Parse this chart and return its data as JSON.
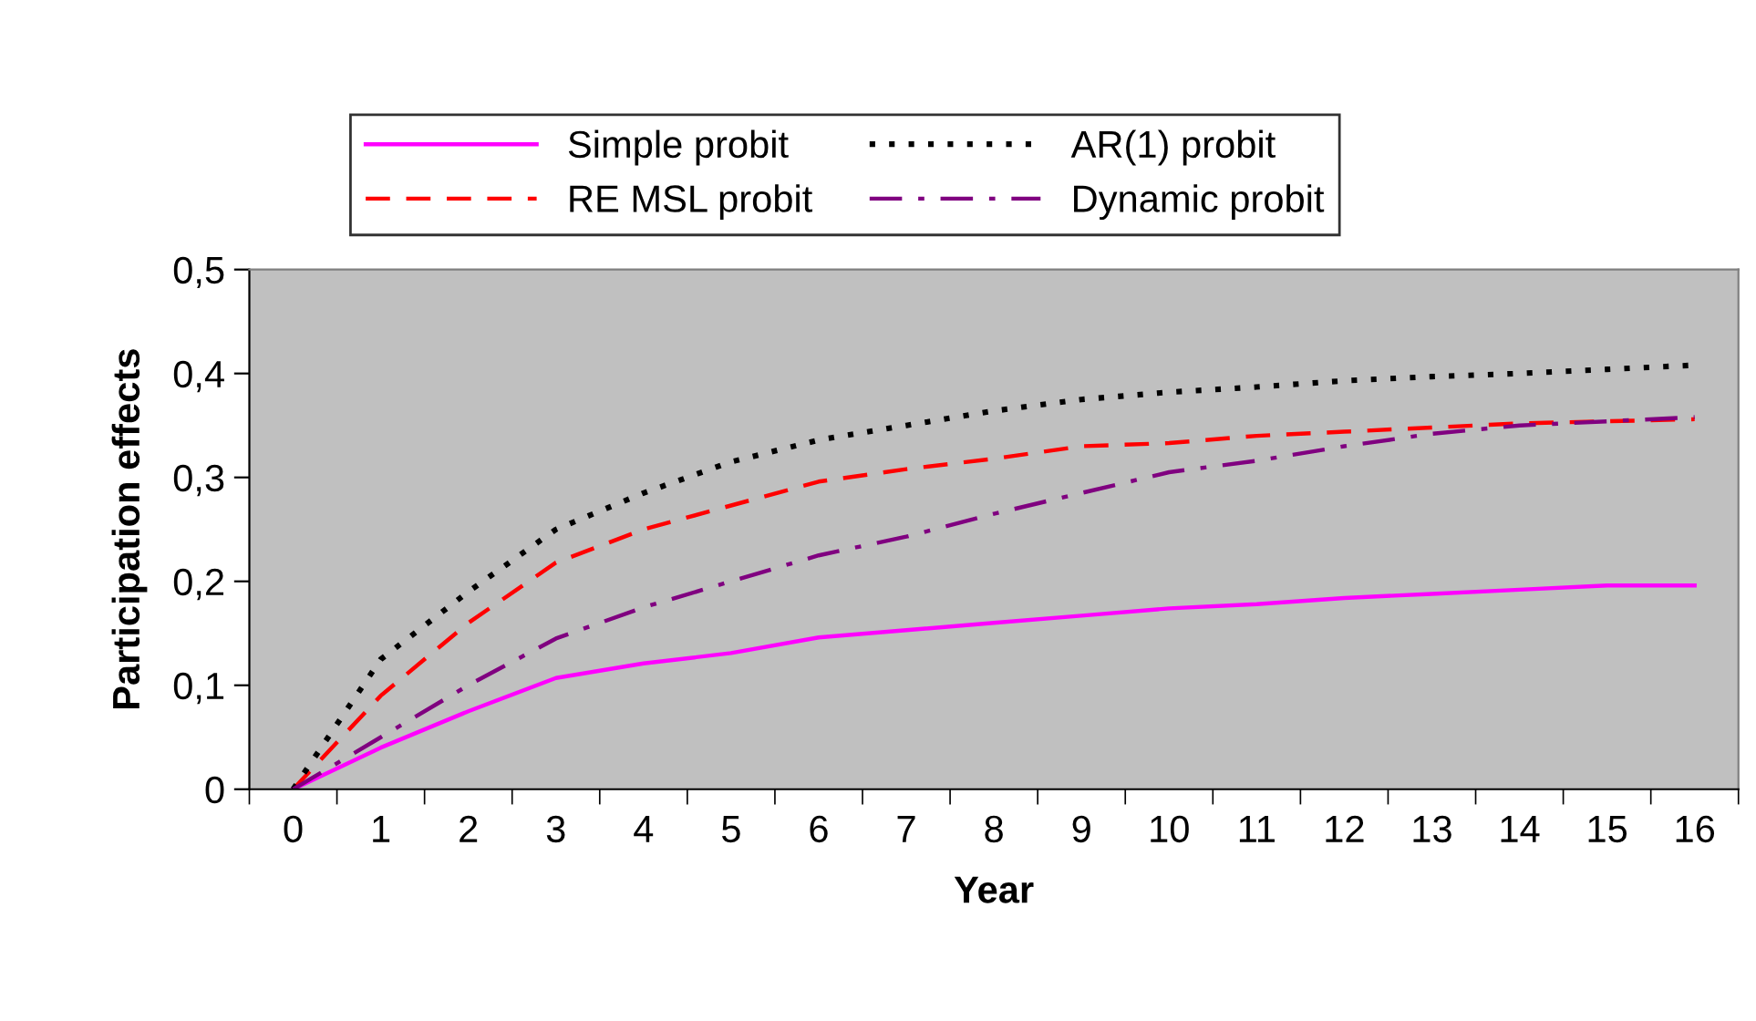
{
  "chart_data": {
    "type": "line",
    "xlabel": "Year",
    "ylabel": "Participation effects",
    "categories": [
      "0",
      "1",
      "2",
      "3",
      "4",
      "5",
      "6",
      "7",
      "8",
      "9",
      "10",
      "11",
      "12",
      "13",
      "14",
      "15",
      "16"
    ],
    "series": [
      {
        "name": "Simple probit",
        "color": "#ff00ff",
        "line_style": "solid",
        "values": [
          0,
          0.04,
          0.075,
          0.107,
          0.121,
          0.131,
          0.146,
          0.153,
          0.16,
          0.167,
          0.174,
          0.178,
          0.184,
          0.188,
          0.192,
          0.196,
          0.196
        ]
      },
      {
        "name": "RE MSL probit",
        "color": "#ff0000",
        "line_style": "dashed",
        "values": [
          0,
          0.09,
          0.16,
          0.218,
          0.25,
          0.273,
          0.296,
          0.308,
          0.318,
          0.33,
          0.333,
          0.34,
          0.344,
          0.348,
          0.352,
          0.354,
          0.356
        ]
      },
      {
        "name": "AR(1) probit",
        "color": "#000000",
        "line_style": "dotted",
        "values": [
          0,
          0.125,
          0.19,
          0.25,
          0.285,
          0.315,
          0.336,
          0.35,
          0.364,
          0.375,
          0.382,
          0.387,
          0.393,
          0.397,
          0.4,
          0.404,
          0.408
        ]
      },
      {
        "name": "Dynamic probit",
        "color": "#800080",
        "line_style": "dashdot",
        "values": [
          0,
          0.05,
          0.1,
          0.145,
          0.175,
          0.2,
          0.225,
          0.243,
          0.265,
          0.285,
          0.305,
          0.316,
          0.33,
          0.342,
          0.35,
          0.354,
          0.358
        ]
      }
    ],
    "ylim": [
      0,
      0.5
    ],
    "yticks": [
      {
        "value": 0,
        "label": "0"
      },
      {
        "value": 0.1,
        "label": "0,1"
      },
      {
        "value": 0.2,
        "label": "0,2"
      },
      {
        "value": 0.3,
        "label": "0,3"
      },
      {
        "value": 0.4,
        "label": "0,4"
      },
      {
        "value": 0.5,
        "label": "0,5"
      }
    ],
    "grid": false,
    "legend": "top",
    "marker": "none"
  }
}
